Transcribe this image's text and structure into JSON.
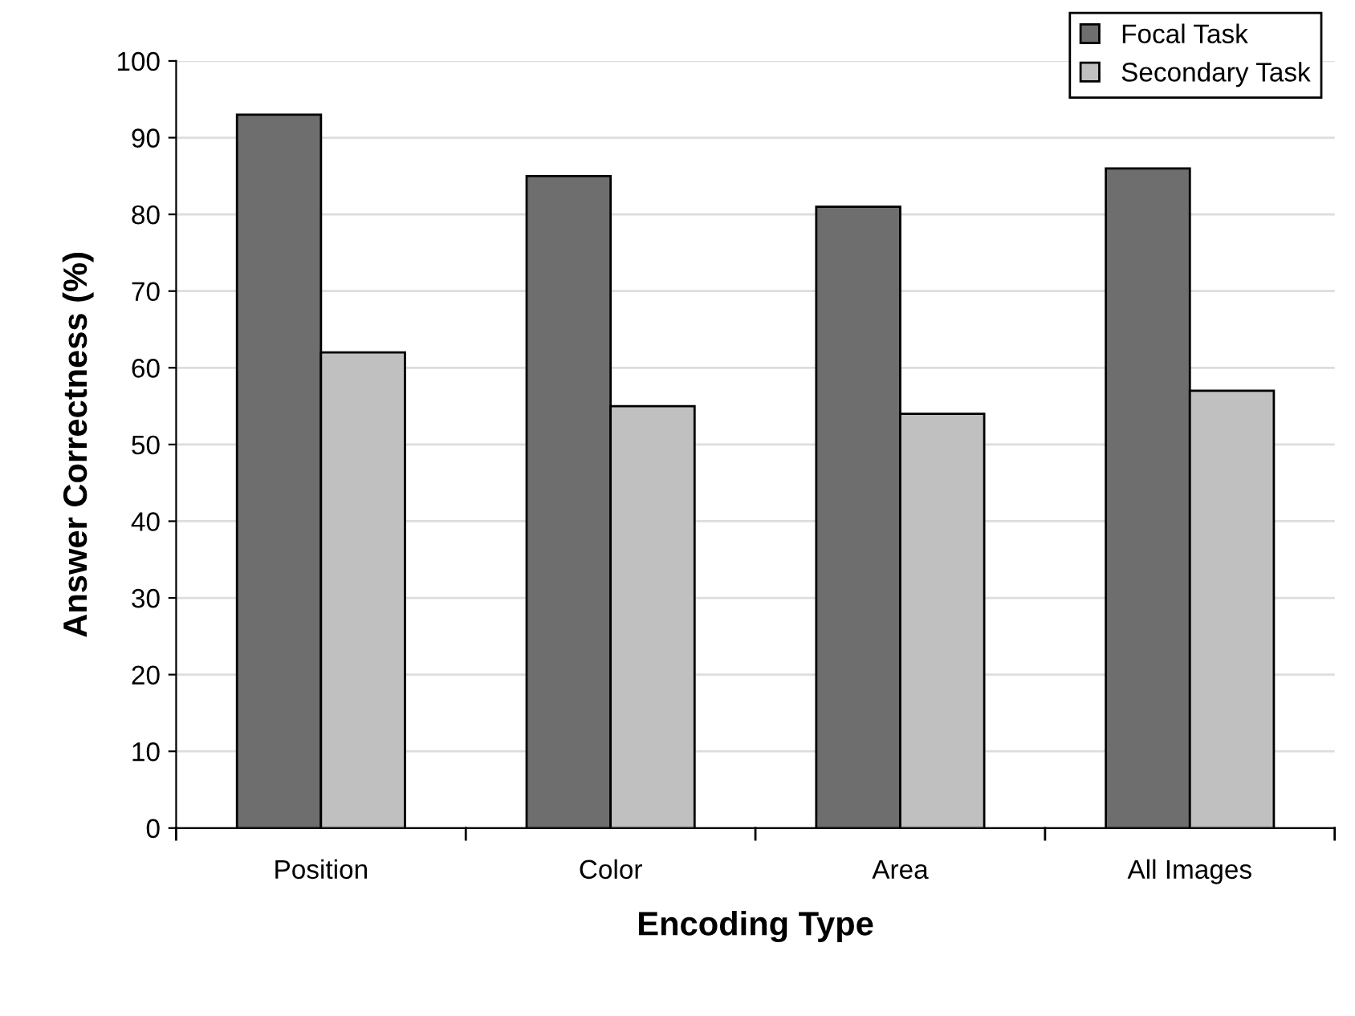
{
  "chart_data": {
    "type": "bar",
    "xlabel": "Encoding Type",
    "ylabel": "Answer Correctness (%)",
    "categories": [
      "Position",
      "Color",
      "Area",
      "All Images"
    ],
    "series": [
      {
        "name": "Focal Task",
        "color": "#6e6e6e",
        "values": [
          93,
          85,
          81,
          86
        ]
      },
      {
        "name": "Secondary Task",
        "color": "#c0c0c0",
        "values": [
          62,
          55,
          54,
          57
        ]
      }
    ],
    "ylim": [
      0,
      100
    ],
    "yticks": [
      0,
      10,
      20,
      30,
      40,
      50,
      60,
      70,
      80,
      90,
      100
    ],
    "grid": "y",
    "legend": "top right"
  }
}
